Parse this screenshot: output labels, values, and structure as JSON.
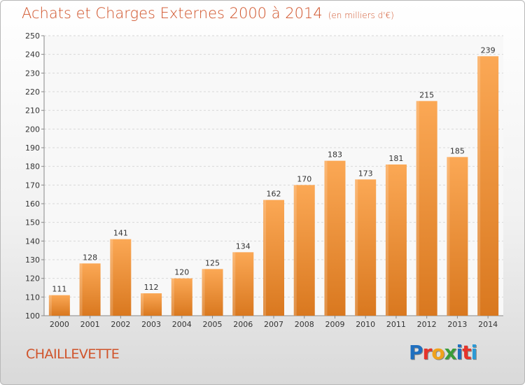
{
  "header": {
    "title": "Achats et Charges Externes 2000 à 2014",
    "subtitle": "(en milliers d'€)"
  },
  "footer": {
    "commune": "CHAILLEVETTE",
    "logo_text": "Proxiti"
  },
  "colors": {
    "accent": "#d0532a",
    "bar_light": "#f9a553",
    "bar_dark": "#e07f22",
    "logo": [
      "#1f6fbf",
      "#e6342a",
      "#f0a21c",
      "#3a9d3a",
      "#1f6fbf",
      "#e6342a",
      "#2b9ad6"
    ]
  },
  "chart_data": {
    "type": "bar",
    "title": "Achats et Charges Externes 2000 à 2014",
    "subtitle": "(en milliers d'€)",
    "categories": [
      "2000",
      "2001",
      "2002",
      "2003",
      "2004",
      "2005",
      "2006",
      "2007",
      "2008",
      "2009",
      "2010",
      "2011",
      "2012",
      "2013",
      "2014"
    ],
    "values": [
      111,
      128,
      141,
      112,
      120,
      125,
      134,
      162,
      170,
      183,
      173,
      181,
      215,
      185,
      239
    ],
    "ylim": [
      100,
      250
    ],
    "yticks": [
      100,
      110,
      120,
      130,
      140,
      150,
      160,
      170,
      180,
      190,
      200,
      210,
      220,
      230,
      240,
      250
    ],
    "grid": true,
    "data_labels": true
  }
}
